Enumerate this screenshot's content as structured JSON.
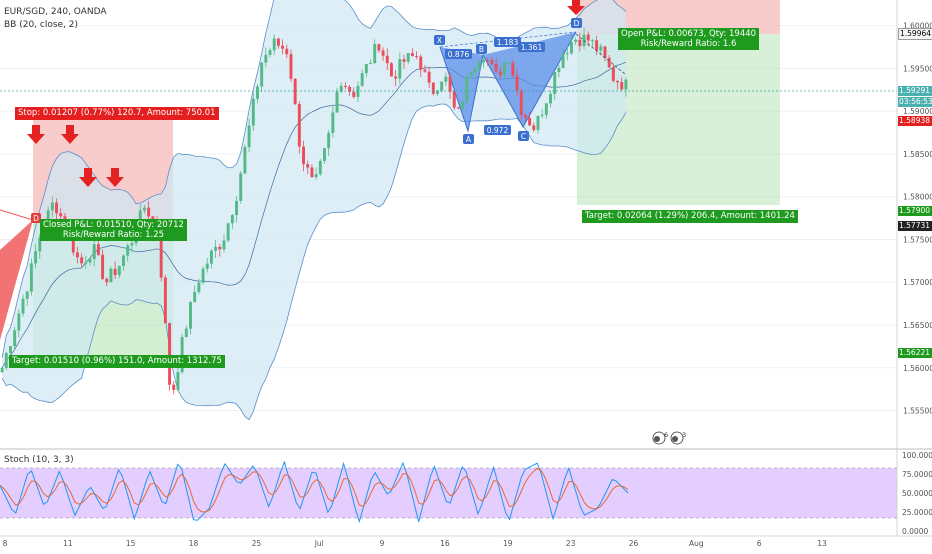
{
  "header": {
    "symbol_line": "EUR/SGD, 240, OANDA",
    "bb_line": "BB (20, close, 2)",
    "stoch_line": "Stoch (10, 3, 3)"
  },
  "colors": {
    "up": "#53b987",
    "down": "#eb4d5c",
    "bb_fill": "#cfe7f2",
    "bb_line": "#5b8ecb",
    "stoch_k": "#2196f3",
    "stoch_d": "#e36a3a",
    "stoch_band": "#d9b8ff",
    "loss_zone": "#f7b7b7",
    "profit_zone": "#b7e3b7",
    "harmonic": "#5b8fe8",
    "arrow": "#e52222"
  },
  "annotations": {
    "stop_label": "Stop: 0.01207 (0.77%) 120.7, Amount: 750.01",
    "closed_label_1": "Closed P&L: 0.01510, Qty: 20712",
    "closed_label_2": "Risk/Reward Ratio: 1.25",
    "target1_label": "Target: 0.01510 (0.96%) 151.0, Amount: 1312.75",
    "open_label_1": "Open P&L: 0.00673, Qty: 19440",
    "open_label_2": "Risk/Reward Ratio: 1.6",
    "target2_label": "Target: 0.02064 (1.29%) 206.4, Amount: 1401.24",
    "pattern_points": [
      "X",
      "A",
      "B",
      "C",
      "D"
    ],
    "ratios": [
      "0.876",
      "1.183",
      "1.361",
      "0.972"
    ],
    "d_marker": "D",
    "event_badges": [
      "6",
      "3"
    ]
  },
  "price_axis": {
    "levels": [
      "1.60000",
      "1.59500",
      "1.59000",
      "1.58500",
      "1.58000",
      "1.57500",
      "1.57000",
      "1.56500",
      "1.56000",
      "1.55500"
    ],
    "tags": {
      "stop2": "1.59964",
      "current": "1.59291",
      "countdown": "03:56:53",
      "entry2": "1.58938",
      "target2": "1.57900",
      "stop1": "1.57731",
      "target1": "1.56221"
    }
  },
  "stoch_axis": {
    "levels": [
      "100.0000",
      "75.0000",
      "50.0000",
      "25.0000",
      "0.0000"
    ]
  },
  "time_axis": {
    "labels": [
      "8",
      "11",
      "15",
      "18",
      "25",
      "Jul",
      "9",
      "16",
      "19",
      "23",
      "26",
      "Aug",
      "6",
      "13"
    ]
  },
  "chart_data": {
    "type": "candlestick",
    "symbol": "EUR/SGD",
    "timeframe": "240",
    "source": "OANDA",
    "ylim": [
      1.5505,
      1.603
    ],
    "indicators": [
      {
        "name": "BB",
        "params": [
          20,
          "close",
          2
        ]
      },
      {
        "name": "Stoch",
        "params": [
          10,
          3,
          3
        ],
        "ylim": [
          0,
          100
        ],
        "bands": [
          20,
          80
        ]
      }
    ],
    "close_path": [
      1.56,
      1.565,
      1.57,
      1.576,
      1.5795,
      1.576,
      1.572,
      1.574,
      1.57,
      1.572,
      1.575,
      1.579,
      1.576,
      1.556,
      1.564,
      1.57,
      1.573,
      1.575,
      1.58,
      1.588,
      1.596,
      1.598,
      1.597,
      1.585,
      1.581,
      1.586,
      1.594,
      1.592,
      1.595,
      1.598,
      1.594,
      1.596,
      1.5965,
      1.592,
      1.5945,
      1.589,
      1.595,
      1.597,
      1.594,
      1.5965,
      1.59,
      1.588,
      1.592,
      1.5965,
      1.5985,
      1.5985,
      1.597,
      1.594,
      1.593
    ],
    "stoch_path": [
      60,
      20,
      85,
      30,
      80,
      20,
      60,
      25,
      85,
      15,
      80,
      30,
      95,
      10,
      30,
      90,
      60,
      88,
      30,
      92,
      25,
      85,
      20,
      90,
      10,
      80,
      45,
      92,
      12,
      88,
      30,
      90,
      20,
      85,
      10,
      80,
      90,
      15,
      85,
      20,
      30,
      70,
      50
    ],
    "harmonic_pattern": {
      "X": 1.598,
      "A": 1.588,
      "B": 1.5955,
      "C": 1.588,
      "D": 1.6003
    },
    "positions": [
      {
        "side": "long",
        "stop": 1.5698,
        "entry": 1.57731,
        "target": 1.56221,
        "closed_pnl": 0.0151
      },
      {
        "side": "short",
        "stop": 1.59964,
        "entry": 1.58938,
        "target": 1.579,
        "open_pnl": 0.00673
      }
    ]
  }
}
